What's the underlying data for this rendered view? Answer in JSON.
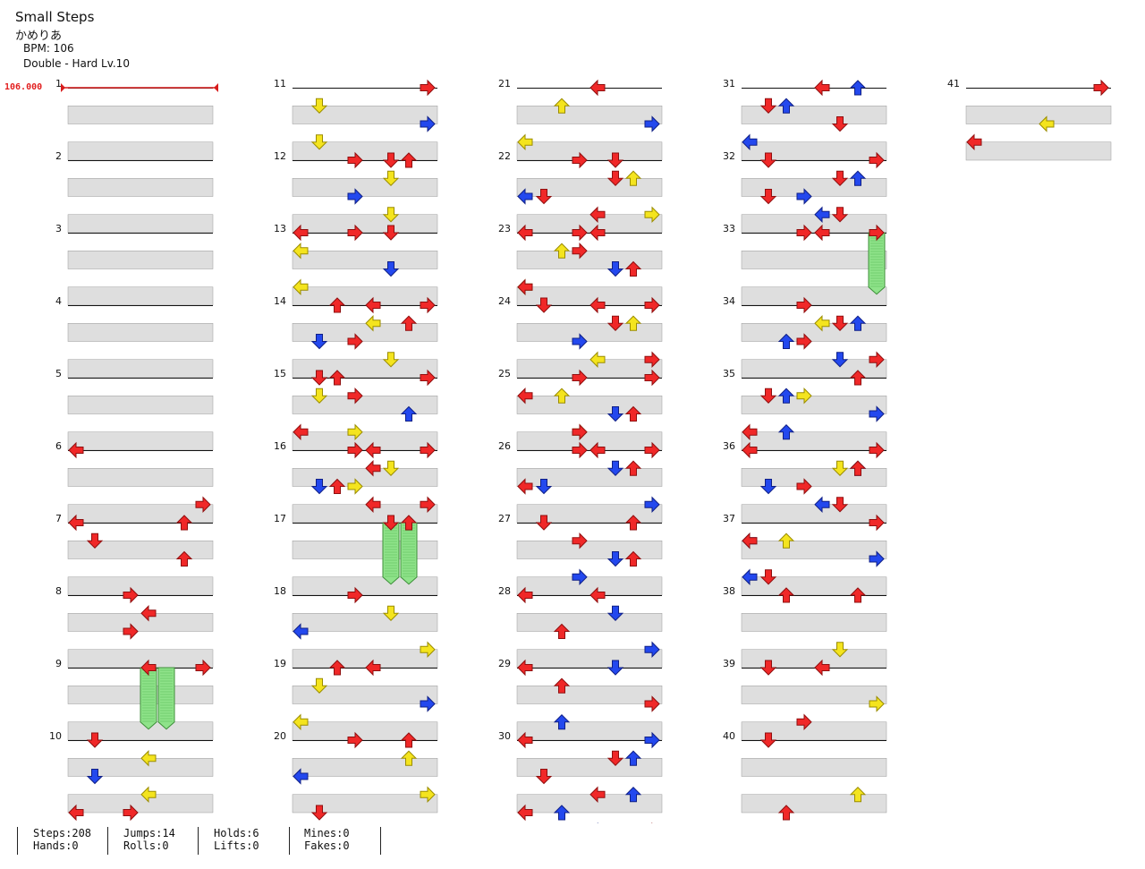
{
  "song": {
    "title": "Small Steps",
    "artist": "かめりあ",
    "bpm_label": "BPM: 106",
    "chart_label": "Double - Hard  Lv.10",
    "bpm_marker": "106.000"
  },
  "colors": {
    "red": "#f02828",
    "blue": "#2348ee",
    "yellow": "#f4e41e",
    "hold": "#8fe38a",
    "row_shade": "#dedede",
    "bpm_line": "#d81c1c"
  },
  "measures": {
    "labels": [
      "1",
      "2",
      "3",
      "4",
      "5",
      "6",
      "7",
      "8",
      "9",
      "10",
      "11",
      "12",
      "13",
      "14",
      "15",
      "16",
      "17",
      "18",
      "19",
      "20",
      "21",
      "22",
      "23",
      "24",
      "25",
      "26",
      "27",
      "28",
      "29",
      "30",
      "31",
      "32",
      "33",
      "34",
      "35",
      "36",
      "37",
      "38",
      "39",
      "40",
      "41"
    ]
  },
  "notes": [
    [
      0,
      6,
      0,
      "L",
      "r"
    ],
    [
      0,
      6,
      3,
      "R",
      "r"
    ],
    [
      0,
      6,
      4,
      "L",
      "r"
    ],
    [
      0,
      7,
      0,
      "U",
      "r"
    ],
    [
      0,
      7,
      1,
      "D",
      "r"
    ],
    [
      0,
      7,
      2,
      "U",
      "r"
    ],
    [
      0,
      8,
      0,
      "R",
      "r"
    ],
    [
      0,
      8,
      1,
      "L",
      "r"
    ],
    [
      0,
      8,
      2,
      "R",
      "r"
    ],
    [
      0,
      9,
      0,
      "R",
      "r"
    ],
    [
      0,
      9,
      0,
      "L",
      "r"
    ],
    [
      0,
      10,
      0,
      "D",
      "r"
    ],
    [
      0,
      10,
      1,
      "L",
      "y"
    ],
    [
      0,
      10,
      2,
      "D",
      "b"
    ],
    [
      0,
      10,
      3,
      "L",
      "y"
    ],
    [
      0,
      10,
      4,
      "L",
      "r"
    ],
    [
      0,
      10,
      4,
      "R",
      "r"
    ],
    [
      1,
      11,
      0,
      "R",
      "r"
    ],
    [
      1,
      11,
      1,
      "D",
      "y"
    ],
    [
      1,
      11,
      2,
      "R",
      "b"
    ],
    [
      1,
      11,
      3,
      "D",
      "y"
    ],
    [
      1,
      11,
      4,
      "D",
      "r"
    ],
    [
      1,
      11,
      4,
      "U",
      "r"
    ],
    [
      1,
      12,
      0,
      "R",
      "r"
    ],
    [
      1,
      12,
      1,
      "D",
      "y"
    ],
    [
      1,
      12,
      2,
      "R",
      "b"
    ],
    [
      1,
      12,
      3,
      "D",
      "y"
    ],
    [
      1,
      12,
      4,
      "R",
      "r"
    ],
    [
      1,
      12,
      4,
      "L",
      "r"
    ],
    [
      1,
      13,
      0,
      "D",
      "r"
    ],
    [
      1,
      13,
      1,
      "L",
      "y"
    ],
    [
      1,
      13,
      2,
      "D",
      "b"
    ],
    [
      1,
      13,
      3,
      "L",
      "y"
    ],
    [
      1,
      13,
      4,
      "R",
      "r"
    ],
    [
      1,
      13,
      4,
      "L",
      "r"
    ],
    [
      1,
      14,
      0,
      "U",
      "r"
    ],
    [
      1,
      14,
      1,
      "L",
      "y"
    ],
    [
      1,
      14,
      1,
      "U",
      "r"
    ],
    [
      1,
      14,
      2,
      "D",
      "b"
    ],
    [
      1,
      14,
      2,
      "R",
      "r"
    ],
    [
      1,
      14,
      3,
      "D",
      "y"
    ],
    [
      1,
      14,
      4,
      "D",
      "r"
    ],
    [
      1,
      14,
      4,
      "U",
      "r"
    ],
    [
      1,
      15,
      0,
      "R",
      "r"
    ],
    [
      1,
      15,
      1,
      "D",
      "y"
    ],
    [
      1,
      15,
      1,
      "R",
      "r"
    ],
    [
      1,
      15,
      2,
      "U",
      "b"
    ],
    [
      1,
      15,
      3,
      "R",
      "y"
    ],
    [
      1,
      15,
      3,
      "L",
      "r"
    ],
    [
      1,
      15,
      4,
      "R",
      "r"
    ],
    [
      1,
      15,
      4,
      "L",
      "r"
    ],
    [
      1,
      16,
      0,
      "R",
      "r"
    ],
    [
      1,
      16,
      1,
      "L",
      "r"
    ],
    [
      1,
      16,
      1,
      "D",
      "y"
    ],
    [
      1,
      16,
      2,
      "D",
      "b"
    ],
    [
      1,
      16,
      2,
      "U",
      "r"
    ],
    [
      1,
      16,
      2,
      "R",
      "y"
    ],
    [
      1,
      16,
      3,
      "L",
      "r"
    ],
    [
      1,
      16,
      3,
      "R",
      "r"
    ],
    [
      1,
      17,
      0,
      "D",
      "r"
    ],
    [
      1,
      17,
      0,
      "U",
      "r"
    ],
    [
      1,
      18,
      0,
      "R",
      "r"
    ],
    [
      1,
      18,
      1,
      "D",
      "y"
    ],
    [
      1,
      18,
      2,
      "L",
      "b"
    ],
    [
      1,
      18,
      3,
      "R",
      "y"
    ],
    [
      1,
      18,
      4,
      "U",
      "r"
    ],
    [
      1,
      19,
      0,
      "L",
      "r"
    ],
    [
      1,
      19,
      1,
      "D",
      "y"
    ],
    [
      1,
      19,
      2,
      "R",
      "b"
    ],
    [
      1,
      19,
      3,
      "L",
      "y"
    ],
    [
      1,
      19,
      4,
      "U",
      "r"
    ],
    [
      1,
      20,
      0,
      "R",
      "r"
    ],
    [
      1,
      20,
      1,
      "U",
      "y"
    ],
    [
      1,
      20,
      2,
      "L",
      "b"
    ],
    [
      1,
      20,
      3,
      "R",
      "y"
    ],
    [
      1,
      20,
      4,
      "D",
      "r"
    ],
    [
      2,
      21,
      0,
      "L",
      "r"
    ],
    [
      2,
      21,
      1,
      "U",
      "y"
    ],
    [
      2,
      21,
      2,
      "R",
      "b"
    ],
    [
      2,
      21,
      3,
      "L",
      "y"
    ],
    [
      2,
      21,
      4,
      "D",
      "r"
    ],
    [
      2,
      22,
      0,
      "R",
      "r"
    ],
    [
      2,
      22,
      1,
      "D",
      "r"
    ],
    [
      2,
      22,
      1,
      "U",
      "y"
    ],
    [
      2,
      22,
      2,
      "L",
      "b"
    ],
    [
      2,
      22,
      2,
      "D",
      "r"
    ],
    [
      2,
      22,
      3,
      "R",
      "y"
    ],
    [
      2,
      22,
      3,
      "L",
      "r"
    ],
    [
      2,
      22,
      4,
      "R",
      "r"
    ],
    [
      2,
      22,
      4,
      "L",
      "r"
    ],
    [
      2,
      23,
      0,
      "L",
      "r"
    ],
    [
      2,
      23,
      1,
      "U",
      "y"
    ],
    [
      2,
      23,
      1,
      "R",
      "r"
    ],
    [
      2,
      23,
      2,
      "D",
      "b"
    ],
    [
      2,
      23,
      2,
      "U",
      "r"
    ],
    [
      2,
      23,
      3,
      "L",
      "y"
    ],
    [
      2,
      23,
      3,
      "L",
      "r"
    ],
    [
      2,
      23,
      4,
      "R",
      "r"
    ],
    [
      2,
      23,
      4,
      "L",
      "r"
    ],
    [
      2,
      24,
      0,
      "D",
      "r"
    ],
    [
      2,
      24,
      1,
      "U",
      "y"
    ],
    [
      2,
      24,
      1,
      "D",
      "r"
    ],
    [
      2,
      24,
      2,
      "R",
      "b"
    ],
    [
      2,
      24,
      3,
      "L",
      "y"
    ],
    [
      2,
      24,
      3,
      "R",
      "r"
    ],
    [
      2,
      24,
      4,
      "R",
      "r"
    ],
    [
      2,
      25,
      0,
      "R",
      "r"
    ],
    [
      2,
      25,
      1,
      "L",
      "r"
    ],
    [
      2,
      25,
      1,
      "U",
      "y"
    ],
    [
      2,
      25,
      2,
      "D",
      "b"
    ],
    [
      2,
      25,
      2,
      "U",
      "r"
    ],
    [
      2,
      25,
      3,
      "R",
      "y"
    ],
    [
      2,
      25,
      3,
      "R",
      "r"
    ],
    [
      2,
      25,
      4,
      "L",
      "r"
    ],
    [
      2,
      25,
      4,
      "R",
      "r"
    ],
    [
      2,
      26,
      0,
      "R",
      "r"
    ],
    [
      2,
      26,
      1,
      "D",
      "b"
    ],
    [
      2,
      26,
      1,
      "U",
      "r"
    ],
    [
      2,
      26,
      2,
      "D",
      "b"
    ],
    [
      2,
      26,
      2,
      "L",
      "r"
    ],
    [
      2,
      26,
      3,
      "R",
      "b"
    ],
    [
      2,
      26,
      4,
      "D",
      "r"
    ],
    [
      2,
      27,
      0,
      "U",
      "r"
    ],
    [
      2,
      27,
      1,
      "R",
      "r"
    ],
    [
      2,
      27,
      2,
      "D",
      "b"
    ],
    [
      2,
      27,
      2,
      "U",
      "r"
    ],
    [
      2,
      27,
      3,
      "R",
      "b"
    ],
    [
      2,
      27,
      4,
      "L",
      "r"
    ],
    [
      2,
      28,
      0,
      "L",
      "r"
    ],
    [
      2,
      28,
      1,
      "D",
      "b"
    ],
    [
      2,
      28,
      2,
      "U",
      "r"
    ],
    [
      2,
      28,
      3,
      "R",
      "b"
    ],
    [
      2,
      28,
      4,
      "L",
      "r"
    ],
    [
      2,
      29,
      0,
      "D",
      "b"
    ],
    [
      2,
      29,
      1,
      "U",
      "r"
    ],
    [
      2,
      29,
      2,
      "R",
      "r"
    ],
    [
      2,
      29,
      3,
      "U",
      "b"
    ],
    [
      2,
      29,
      4,
      "R",
      "b"
    ],
    [
      2,
      30,
      0,
      "L",
      "r"
    ],
    [
      2,
      30,
      1,
      "D",
      "r"
    ],
    [
      2,
      30,
      1,
      "U",
      "b"
    ],
    [
      2,
      30,
      2,
      "D",
      "r"
    ],
    [
      2,
      30,
      3,
      "L",
      "r"
    ],
    [
      2,
      30,
      3,
      "U",
      "b"
    ],
    [
      2,
      30,
      4,
      "L",
      "r"
    ],
    [
      2,
      30,
      4,
      "U",
      "b"
    ],
    [
      2,
      30,
      5,
      "R",
      "r"
    ],
    [
      2,
      30,
      5,
      "L",
      "b"
    ],
    [
      2,
      30,
      6,
      "R",
      "r"
    ],
    [
      3,
      31,
      0,
      "L",
      "r"
    ],
    [
      3,
      31,
      0,
      "U",
      "b"
    ],
    [
      3,
      31,
      1,
      "D",
      "r"
    ],
    [
      3,
      31,
      1,
      "U",
      "b"
    ],
    [
      3,
      31,
      2,
      "D",
      "r"
    ],
    [
      3,
      31,
      3,
      "L",
      "b"
    ],
    [
      3,
      31,
      4,
      "R",
      "r"
    ],
    [
      3,
      32,
      0,
      "D",
      "r"
    ],
    [
      3,
      32,
      1,
      "D",
      "r"
    ],
    [
      3,
      32,
      1,
      "U",
      "b"
    ],
    [
      3,
      32,
      2,
      "D",
      "r"
    ],
    [
      3,
      32,
      2,
      "R",
      "b"
    ],
    [
      3,
      32,
      3,
      "D",
      "r"
    ],
    [
      3,
      32,
      3,
      "L",
      "b"
    ],
    [
      3,
      32,
      4,
      "R",
      "r"
    ],
    [
      3,
      33,
      0,
      "R",
      "r"
    ],
    [
      3,
      33,
      0,
      "L",
      "r"
    ],
    [
      3,
      34,
      0,
      "R",
      "r"
    ],
    [
      3,
      34,
      1,
      "L",
      "y"
    ],
    [
      3,
      34,
      1,
      "U",
      "b"
    ],
    [
      3,
      34,
      1,
      "D",
      "r"
    ],
    [
      3,
      34,
      2,
      "U",
      "b"
    ],
    [
      3,
      34,
      2,
      "R",
      "r"
    ],
    [
      3,
      34,
      3,
      "D",
      "b"
    ],
    [
      3,
      34,
      3,
      "R",
      "r"
    ],
    [
      3,
      35,
      0,
      "U",
      "r"
    ],
    [
      3,
      35,
      1,
      "R",
      "y"
    ],
    [
      3,
      35,
      1,
      "U",
      "b"
    ],
    [
      3,
      35,
      1,
      "D",
      "r"
    ],
    [
      3,
      35,
      2,
      "R",
      "b"
    ],
    [
      3,
      35,
      3,
      "L",
      "r"
    ],
    [
      3,
      35,
      3,
      "U",
      "b"
    ],
    [
      3,
      35,
      4,
      "R",
      "r"
    ],
    [
      3,
      36,
      0,
      "L",
      "r"
    ],
    [
      3,
      36,
      1,
      "D",
      "y"
    ],
    [
      3,
      36,
      1,
      "U",
      "b"
    ],
    [
      3,
      36,
      1,
      "U",
      "r"
    ],
    [
      3,
      36,
      2,
      "D",
      "b"
    ],
    [
      3,
      36,
      2,
      "R",
      "r"
    ],
    [
      3,
      36,
      3,
      "L",
      "b"
    ],
    [
      3,
      36,
      3,
      "D",
      "r"
    ],
    [
      3,
      37,
      0,
      "R",
      "r"
    ],
    [
      3,
      37,
      1,
      "U",
      "y"
    ],
    [
      3,
      37,
      1,
      "L",
      "b"
    ],
    [
      3,
      37,
      1,
      "L",
      "r"
    ],
    [
      3,
      37,
      2,
      "R",
      "b"
    ],
    [
      3,
      37,
      3,
      "L",
      "b"
    ],
    [
      3,
      37,
      3,
      "D",
      "r"
    ],
    [
      3,
      37,
      4,
      "U",
      "r"
    ],
    [
      3,
      38,
      0,
      "U",
      "r"
    ],
    [
      3,
      38,
      3,
      "D",
      "y"
    ],
    [
      3,
      38,
      4,
      "D",
      "r"
    ],
    [
      3,
      39,
      0,
      "L",
      "r"
    ],
    [
      3,
      39,
      2,
      "R",
      "y"
    ],
    [
      3,
      39,
      3,
      "R",
      "r"
    ],
    [
      3,
      40,
      0,
      "D",
      "r"
    ],
    [
      3,
      40,
      3,
      "U",
      "y"
    ],
    [
      3,
      40,
      4,
      "U",
      "r"
    ],
    [
      4,
      41,
      0,
      "R",
      "r"
    ],
    [
      4,
      41,
      2,
      "L",
      "y"
    ],
    [
      4,
      41,
      3,
      "L",
      "r"
    ]
  ],
  "holds": [
    [
      0,
      9,
      0,
      9,
      3,
      4,
      5
    ],
    [
      1,
      17,
      0,
      17,
      3,
      5,
      6
    ],
    [
      3,
      33,
      0,
      33,
      3,
      7,
      8
    ]
  ],
  "stats": {
    "col1": [
      "Steps:208",
      "Hands:0"
    ],
    "col2": [
      "Jumps:14",
      "Rolls:0"
    ],
    "col3": [
      "Holds:6",
      "Lifts:0"
    ],
    "col4": [
      "Mines:0",
      "Fakes:0"
    ]
  }
}
